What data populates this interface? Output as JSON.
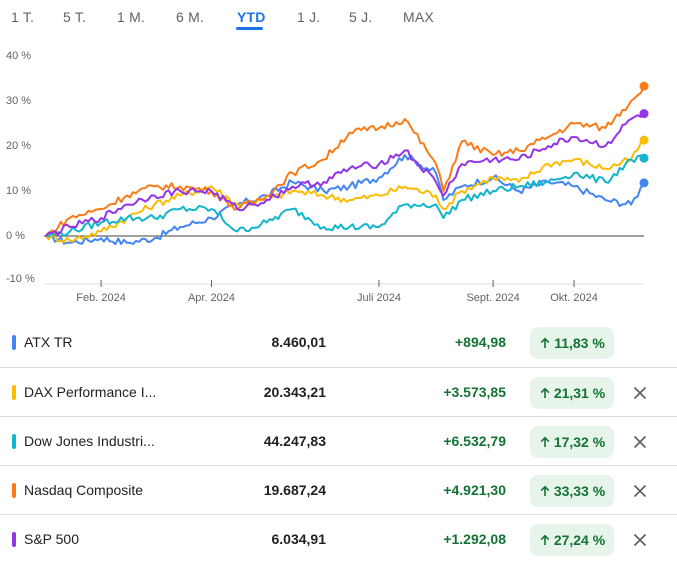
{
  "tabs": [
    {
      "label": "1 T."
    },
    {
      "label": "5 T."
    },
    {
      "label": "1 M."
    },
    {
      "label": "6 M."
    },
    {
      "label": "YTD"
    },
    {
      "label": "1 J."
    },
    {
      "label": "5 J."
    },
    {
      "label": "MAX"
    }
  ],
  "active_tab": "YTD",
  "chart_data": {
    "type": "line",
    "y_unit": "%",
    "ylim": [
      -10,
      40
    ],
    "y_ticks": [
      "40 %",
      "30 %",
      "20 %",
      "10 %",
      "0 %",
      "-10 %"
    ],
    "x_tick_labels": [
      "Feb. 2024",
      "Apr. 2024",
      "Juli 2024",
      "Sept. 2024",
      "Okt. 2024"
    ],
    "x_tick_dates": [
      "2024-02-01",
      "2024-04-01",
      "2024-07-01",
      "2024-09-01",
      "2024-10-15"
    ],
    "x_range": [
      "2024-01-01",
      "2024-11-22"
    ],
    "grid": false,
    "baseline": 0,
    "series": [
      {
        "name": "ATX TR",
        "color": "#4285f4",
        "x": [
          "2024-01-02",
          "2024-01-15",
          "2024-02-01",
          "2024-02-15",
          "2024-03-01",
          "2024-03-15",
          "2024-04-01",
          "2024-04-15",
          "2024-05-01",
          "2024-05-15",
          "2024-06-01",
          "2024-06-15",
          "2024-07-01",
          "2024-07-15",
          "2024-08-01",
          "2024-08-05",
          "2024-08-15",
          "2024-09-01",
          "2024-09-15",
          "2024-10-01",
          "2024-10-15",
          "2024-11-01",
          "2024-11-15",
          "2024-11-22"
        ],
        "values": [
          0,
          -1.5,
          -0.5,
          -1.5,
          -0.5,
          2,
          4,
          7,
          9,
          12,
          10,
          11,
          13,
          18,
          14,
          8,
          11,
          13,
          10,
          12,
          11,
          8,
          7,
          11.8
        ]
      },
      {
        "name": "DAX Performance Index",
        "color": "#fbbc04",
        "x": [
          "2024-01-02",
          "2024-01-15",
          "2024-02-01",
          "2024-02-15",
          "2024-03-01",
          "2024-03-15",
          "2024-04-01",
          "2024-04-15",
          "2024-05-01",
          "2024-05-15",
          "2024-06-01",
          "2024-06-15",
          "2024-07-01",
          "2024-07-15",
          "2024-08-01",
          "2024-08-05",
          "2024-08-15",
          "2024-09-01",
          "2024-09-15",
          "2024-10-01",
          "2024-10-15",
          "2024-11-01",
          "2024-11-15",
          "2024-11-22"
        ],
        "values": [
          0,
          -1,
          1,
          4,
          7,
          9,
          11,
          7,
          8,
          10,
          9,
          8,
          9,
          11,
          9,
          6,
          10,
          13,
          12,
          16,
          17,
          15,
          17,
          21.3
        ]
      },
      {
        "name": "Dow Jones Industrial Average",
        "color": "#12b5cb",
        "x": [
          "2024-01-02",
          "2024-01-15",
          "2024-02-01",
          "2024-02-15",
          "2024-03-01",
          "2024-03-15",
          "2024-04-01",
          "2024-04-15",
          "2024-05-01",
          "2024-05-15",
          "2024-06-01",
          "2024-06-15",
          "2024-07-01",
          "2024-07-15",
          "2024-08-01",
          "2024-08-05",
          "2024-08-15",
          "2024-09-01",
          "2024-09-15",
          "2024-10-01",
          "2024-10-15",
          "2024-11-01",
          "2024-11-15",
          "2024-11-22"
        ],
        "values": [
          0,
          1,
          3,
          4,
          4,
          6,
          6,
          1,
          3,
          6,
          2,
          2,
          2,
          7,
          7,
          4,
          8,
          10,
          11,
          12,
          14,
          12,
          17,
          17.3
        ]
      },
      {
        "name": "Nasdaq Composite",
        "color": "#fa7b17",
        "x": [
          "2024-01-02",
          "2024-01-15",
          "2024-02-01",
          "2024-02-15",
          "2024-03-01",
          "2024-03-15",
          "2024-04-01",
          "2024-04-15",
          "2024-05-01",
          "2024-05-15",
          "2024-06-01",
          "2024-06-15",
          "2024-07-01",
          "2024-07-15",
          "2024-08-01",
          "2024-08-05",
          "2024-08-15",
          "2024-09-01",
          "2024-09-15",
          "2024-10-01",
          "2024-10-15",
          "2024-11-01",
          "2024-11-15",
          "2024-11-22"
        ],
        "values": [
          0,
          4,
          6,
          9,
          11,
          11,
          10,
          6,
          9,
          14,
          17,
          23,
          24,
          26,
          16,
          10,
          21,
          18,
          19,
          22,
          25,
          24,
          30,
          33.3
        ]
      },
      {
        "name": "S&P 500",
        "color": "#9334e6",
        "x": [
          "2024-01-02",
          "2024-01-15",
          "2024-02-01",
          "2024-02-15",
          "2024-03-01",
          "2024-03-15",
          "2024-04-01",
          "2024-04-15",
          "2024-05-01",
          "2024-05-15",
          "2024-06-01",
          "2024-06-15",
          "2024-07-01",
          "2024-07-15",
          "2024-08-01",
          "2024-08-05",
          "2024-08-15",
          "2024-09-01",
          "2024-09-15",
          "2024-10-01",
          "2024-10-15",
          "2024-11-01",
          "2024-11-15",
          "2024-11-22"
        ],
        "values": [
          0,
          2,
          4,
          7,
          9,
          10,
          10,
          6,
          8,
          11,
          12,
          15,
          16,
          19,
          12,
          9,
          16,
          17,
          17,
          20,
          22,
          20,
          26,
          27.2
        ]
      }
    ]
  },
  "rows": [
    {
      "name": "ATX TR",
      "color": "#4285f4",
      "price": "8.460,01",
      "change": "+894,98",
      "pct": "11,83 %",
      "removable": false
    },
    {
      "name": "DAX Performance I...",
      "color": "#fbbc04",
      "price": "20.343,21",
      "change": "+3.573,85",
      "pct": "21,31 %",
      "removable": true
    },
    {
      "name": "Dow Jones Industri...",
      "color": "#12b5cb",
      "price": "44.247,83",
      "change": "+6.532,79",
      "pct": "17,32 %",
      "removable": true
    },
    {
      "name": "Nasdaq Composite",
      "color": "#fa7b17",
      "price": "19.687,24",
      "change": "+4.921,30",
      "pct": "33,33 %",
      "removable": true
    },
    {
      "name": "S&P 500",
      "color": "#9334e6",
      "price": "6.034,91",
      "change": "+1.292,08",
      "pct": "27,24 %",
      "removable": true
    }
  ],
  "icons": {
    "pct_prefix": "arrow-up-icon",
    "remove": "close-icon"
  }
}
